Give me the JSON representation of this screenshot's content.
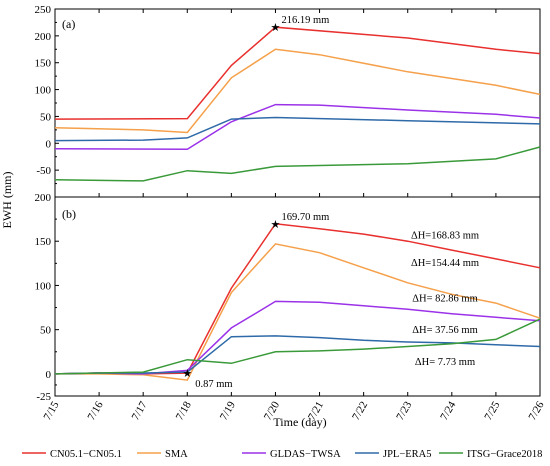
{
  "chart_data": {
    "type": "line",
    "x_ticks": [
      "7/15",
      "7/16",
      "7/17",
      "7/18",
      "7/19",
      "7/20",
      "7/21",
      "7/22",
      "7/23",
      "7/24",
      "7/25",
      "7/26"
    ],
    "xlabel": "Time (day)",
    "ylabel": "EWH (mm)",
    "colors": {
      "CN05.1-CN05.1": "#e8302e",
      "SMA": "#f5a04a",
      "GLDAS-TWSA": "#9b32e8",
      "JPL-ERA5": "#2f6aa8",
      "ITSG-Grace2018": "#3a9a3a"
    },
    "legend": [
      "CN05.1−CN05.1",
      "SMA",
      "GLDAS−TWSA",
      "JPL−ERA5",
      "ITSG−Grace2018"
    ],
    "panels": [
      {
        "label": "(a)",
        "ylim": [
          -100,
          250
        ],
        "yticks": [
          "-100",
          "-50",
          "0",
          "50",
          "100",
          "150",
          "200",
          "250"
        ],
        "yticks_hidden_bottom": true,
        "series": [
          {
            "name": "CN05.1-CN05.1",
            "x": [
              0,
              3,
              4,
              5,
              8,
              10,
              11
            ],
            "values": [
              45,
              46,
              145,
              216.19,
              196,
              175,
              167
            ]
          },
          {
            "name": "SMA",
            "x": [
              0,
              2,
              3,
              4,
              5,
              6,
              8,
              10,
              11
            ],
            "values": [
              29,
              25,
              20,
              122,
              175,
              165,
              133,
              108,
              91
            ]
          },
          {
            "name": "GLDAS-TWSA",
            "x": [
              0,
              3,
              4,
              5,
              6,
              8,
              10,
              11
            ],
            "values": [
              -10,
              -11,
              40,
              72,
              71,
              62,
              54,
              47
            ]
          },
          {
            "name": "JPL-ERA5",
            "x": [
              0,
              2,
              3,
              4,
              5,
              8,
              11
            ],
            "values": [
              5,
              6,
              10,
              45,
              48,
              42,
              36
            ]
          },
          {
            "name": "ITSG-Grace2018",
            "x": [
              0,
              2,
              3,
              4,
              5,
              8,
              10,
              11
            ],
            "values": [
              -68,
              -70,
              -51,
              -56,
              -43,
              -38,
              -29,
              -7
            ]
          }
        ],
        "annotations": [
          {
            "text": "216.19 mm",
            "x": 5,
            "y": 216.19,
            "color": "#2b3fd6"
          }
        ]
      },
      {
        "label": "(b)",
        "ylim": [
          -25,
          200
        ],
        "yticks": [
          "-25",
          "0",
          "50",
          "100",
          "150",
          "200"
        ],
        "yticks_hidden_top": true,
        "series": [
          {
            "name": "CN05.1-CN05.1",
            "x": [
              0,
              1,
              2,
              3,
              4,
              5,
              6,
              7,
              8,
              9,
              10,
              11
            ],
            "values": [
              0,
              1,
              0,
              0.87,
              97,
              169.7,
              164,
              158,
              150,
              140,
              130,
              120
            ]
          },
          {
            "name": "SMA",
            "x": [
              0,
              1,
              2,
              3,
              4,
              5,
              6,
              7,
              8,
              9,
              10,
              11
            ],
            "values": [
              0,
              0,
              -1,
              -7,
              92,
              147,
              137,
              120,
              103,
              90,
              80,
              63
            ]
          },
          {
            "name": "GLDAS-TWSA",
            "x": [
              0,
              1,
              2,
              3,
              4,
              5,
              6,
              7,
              8,
              9,
              10,
              11
            ],
            "values": [
              0,
              1,
              0,
              4,
              52,
              82,
              81,
              77,
              73,
              68,
              64,
              60
            ]
          },
          {
            "name": "JPL-ERA5",
            "x": [
              0,
              1,
              2,
              3,
              4,
              5,
              6,
              7,
              8,
              9,
              10,
              11
            ],
            "values": [
              0,
              1,
              1,
              2,
              42,
              43,
              41,
              38,
              36,
              35,
              33,
              31
            ]
          },
          {
            "name": "ITSG-Grace2018",
            "x": [
              0,
              1,
              2,
              3,
              4,
              5,
              6,
              7,
              8,
              9,
              10,
              11
            ],
            "values": [
              0,
              1,
              2,
              16,
              12,
              25,
              26,
              28,
              31,
              34,
              39,
              62
            ]
          }
        ],
        "annotations": [
          {
            "text": "169.70 mm",
            "x": 5,
            "y": 169.7,
            "color": "#2b3fd6"
          },
          {
            "text": "0.87 mm",
            "x": 3,
            "y": 0.87,
            "color": "#2b3fd6"
          },
          {
            "text": "ΔH=168.83 mm",
            "color": "#e8302e",
            "y": 153
          },
          {
            "text": "ΔH=154.44 mm",
            "color": "#f5a04a",
            "y": 122
          },
          {
            "text": "ΔH= 82.86 mm",
            "color": "#9b32e8",
            "y": 82
          },
          {
            "text": "ΔH= 37.56 mm",
            "color": "#2f6aa8",
            "y": 46
          },
          {
            "text": "ΔH= 7.73 mm",
            "color": "#3a9a3a",
            "y": 10
          }
        ]
      }
    ]
  }
}
